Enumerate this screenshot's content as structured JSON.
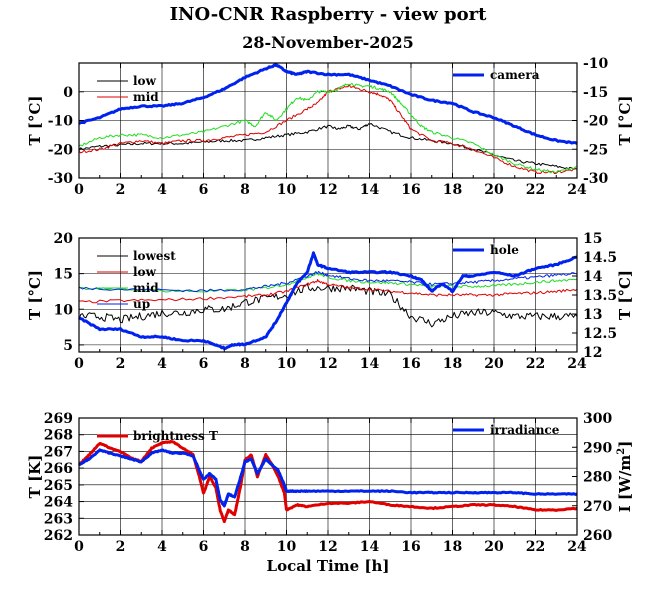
{
  "title": "INO-CNR Raspberry - view port",
  "subtitle": "28-November-2025",
  "colors": {
    "black": "#000000",
    "red": "#e00000",
    "green": "#22dd22",
    "blue": "#0022ee"
  },
  "chart_data": [
    {
      "type": "line",
      "xlabel": "",
      "ylabel": "T [°C]",
      "y2label": "T [°C]",
      "xlim": [
        0,
        24
      ],
      "ylim": [
        -30,
        10
      ],
      "y2lim": [
        -30,
        -10
      ],
      "xticks": [
        0,
        2,
        4,
        6,
        8,
        10,
        12,
        14,
        16,
        18,
        20,
        22,
        24
      ],
      "yticks": [
        -30,
        -20,
        -10,
        0
      ],
      "y2ticks": [
        -30,
        -25,
        -20,
        -15,
        -10
      ],
      "grid": true,
      "legend_left": "top-left",
      "legend_right": "top-right",
      "series": [
        {
          "name": "low",
          "axis": "left",
          "color": "#000000",
          "x": [
            0,
            1,
            2,
            3,
            4,
            5,
            6,
            7,
            8,
            9,
            10,
            11,
            12,
            12.5,
            13,
            13.5,
            14,
            15,
            16,
            17,
            18,
            19,
            20,
            21,
            22,
            23,
            24
          ],
          "y": [
            -20,
            -19,
            -18.5,
            -18,
            -18,
            -18,
            -17.5,
            -17,
            -17,
            -16,
            -15,
            -14,
            -12,
            -13,
            -12,
            -13,
            -11,
            -14,
            -16,
            -17,
            -18,
            -20,
            -22,
            -24,
            -25,
            -26,
            -27
          ]
        },
        {
          "name": "mid",
          "axis": "left",
          "color": "#e00000",
          "x": [
            0,
            1,
            2,
            3,
            4,
            5,
            6,
            7,
            8,
            9,
            10,
            11,
            11.5,
            12,
            12.5,
            13,
            13.5,
            14,
            14.5,
            15,
            15.5,
            16,
            17,
            18,
            19,
            20,
            21,
            22,
            23,
            24
          ],
          "y": [
            -21,
            -20,
            -18,
            -17,
            -18,
            -17,
            -17,
            -16,
            -15,
            -14,
            -10,
            -6,
            -4,
            0,
            1,
            2,
            1,
            0,
            -1,
            -3,
            -8,
            -13,
            -17,
            -18,
            -20,
            -23,
            -26,
            -28,
            -28,
            -27
          ]
        },
        {
          "name": "",
          "axis": "left",
          "color": "#22dd22",
          "x": [
            0,
            1,
            2,
            3,
            4,
            5,
            6,
            7,
            8,
            8.5,
            9,
            9.5,
            10,
            10.5,
            11,
            11.5,
            12,
            12.5,
            13,
            13.5,
            14,
            14.5,
            15,
            15.5,
            16,
            16.5,
            17,
            18,
            19,
            20,
            21,
            22,
            23,
            24
          ],
          "y": [
            -19,
            -16,
            -15,
            -15,
            -16,
            -15,
            -14,
            -12,
            -10,
            -12,
            -7,
            -10,
            -6,
            -2,
            -3,
            0,
            0,
            1,
            3,
            2,
            2,
            1,
            0,
            -4,
            -8,
            -12,
            -14,
            -16,
            -18,
            -22,
            -25,
            -27,
            -28,
            -26
          ]
        },
        {
          "name": "camera",
          "axis": "right",
          "color": "#0022ee",
          "x": [
            0,
            1,
            2,
            3,
            4,
            5,
            6,
            7,
            8,
            9,
            9.5,
            10,
            10.5,
            11,
            12,
            13,
            14,
            15,
            16,
            17,
            18,
            19,
            20,
            21,
            22,
            23,
            24
          ],
          "y": [
            -20.5,
            -19.5,
            -18,
            -17.5,
            -17.5,
            -17,
            -16,
            -14.5,
            -12.5,
            -11,
            -10.3,
            -11.5,
            -12,
            -11.5,
            -12,
            -12,
            -13,
            -14,
            -15.5,
            -16.5,
            -17,
            -18.5,
            -19.5,
            -21,
            -22.5,
            -23.5,
            -24
          ]
        }
      ]
    },
    {
      "type": "line",
      "xlabel": "",
      "ylabel": "T [°C]",
      "y2label": "T [°C]",
      "xlim": [
        0,
        24
      ],
      "ylim": [
        4,
        20
      ],
      "y2lim": [
        12,
        15
      ],
      "xticks": [
        0,
        2,
        4,
        6,
        8,
        10,
        12,
        14,
        16,
        18,
        20,
        22,
        24
      ],
      "yticks": [
        5,
        10,
        15,
        20
      ],
      "y2ticks": [
        12,
        12.5,
        13,
        13.5,
        14,
        14.5,
        15
      ],
      "grid": true,
      "legend_left": "top-left",
      "legend_right": "top-right",
      "series": [
        {
          "name": "lowest",
          "axis": "left",
          "color": "#000000",
          "x": [
            0,
            1,
            2,
            3,
            4,
            5,
            6,
            7,
            8,
            9,
            10,
            11,
            12,
            13,
            14,
            15,
            16,
            17,
            18,
            19,
            20,
            21,
            22,
            23,
            24
          ],
          "y": [
            9,
            9,
            8.5,
            9,
            9.5,
            9.5,
            10,
            10,
            11,
            11.5,
            12,
            13,
            13,
            13,
            12.5,
            12,
            9,
            8,
            9,
            9.5,
            9.5,
            9,
            9,
            9,
            9
          ]
        },
        {
          "name": "low",
          "axis": "left",
          "color": "#e00000",
          "x": [
            0,
            2,
            4,
            6,
            8,
            9,
            10,
            11,
            11.5,
            12,
            13,
            14,
            15,
            16,
            17,
            18,
            19,
            20,
            21,
            22,
            23,
            24
          ],
          "y": [
            11,
            11.2,
            11.3,
            11.5,
            11.8,
            12,
            12.5,
            13.5,
            14,
            13.5,
            13,
            12.8,
            12.5,
            12.3,
            12,
            12,
            12,
            12,
            12.2,
            12.3,
            12.5,
            12.8
          ]
        },
        {
          "name": "mid",
          "axis": "left",
          "color": "#22dd22",
          "x": [
            0,
            2,
            4,
            6,
            8,
            9,
            10,
            11,
            11.5,
            12,
            13,
            14,
            15,
            16,
            17,
            18,
            19,
            20,
            21,
            22,
            23,
            24
          ],
          "y": [
            13,
            12.8,
            12.6,
            12.5,
            12.7,
            13,
            13.5,
            14.5,
            15,
            14.5,
            14,
            13.8,
            13.7,
            13.5,
            13.2,
            13.2,
            13.2,
            13.3,
            13.5,
            13.8,
            14,
            14.2
          ]
        },
        {
          "name": "up",
          "axis": "left",
          "color": "#0022ee",
          "x": [
            0,
            2,
            4,
            6,
            8,
            9,
            10,
            11,
            11.5,
            12,
            13,
            14,
            15,
            16,
            17,
            18,
            19,
            20,
            21,
            22,
            23,
            24
          ],
          "y": [
            13,
            12.8,
            12.7,
            12.6,
            12.8,
            13.2,
            13.7,
            14.7,
            15.2,
            14.8,
            14.3,
            14,
            14,
            13.8,
            13.5,
            13.6,
            13.8,
            14,
            14.3,
            14.5,
            14.8,
            15
          ]
        },
        {
          "name": "hole",
          "axis": "right",
          "color": "#0022ee",
          "x": [
            0,
            1,
            2,
            3,
            4,
            5,
            6,
            6.5,
            7,
            7.5,
            8,
            9,
            9.5,
            10,
            10.5,
            11,
            11.3,
            11.5,
            12,
            13,
            14,
            15,
            16,
            16.5,
            17,
            17.5,
            18,
            18.5,
            19,
            20,
            21,
            22,
            23,
            24
          ],
          "y": [
            12.9,
            12.6,
            12.6,
            12.4,
            12.4,
            12.3,
            12.3,
            12.2,
            12.1,
            12.2,
            12.2,
            12.4,
            12.8,
            13.3,
            13.8,
            14.1,
            14.6,
            14.3,
            14.2,
            14.1,
            14.1,
            14.1,
            14,
            13.9,
            13.6,
            13.8,
            13.6,
            14,
            14,
            14.1,
            14,
            14.2,
            14.3,
            14.5
          ]
        }
      ]
    },
    {
      "type": "line",
      "xlabel": "Local Time [h]",
      "ylabel": "T [K]",
      "y2label": "I [W/m",
      "y2label_sup": "2",
      "y2label_end": "]",
      "xlim": [
        0,
        24
      ],
      "ylim": [
        262,
        269
      ],
      "y2lim": [
        260,
        300
      ],
      "xticks": [
        0,
        2,
        4,
        6,
        8,
        10,
        12,
        14,
        16,
        18,
        20,
        22,
        24
      ],
      "yticks": [
        262,
        263,
        264,
        265,
        266,
        267,
        268,
        269
      ],
      "y2ticks": [
        260,
        270,
        280,
        290,
        300
      ],
      "grid": true,
      "legend_left": "top-left",
      "legend_right": "top-right",
      "series": [
        {
          "name": "brightness T",
          "axis": "left",
          "color": "#e00000",
          "x": [
            0,
            0.5,
            1,
            1.5,
            2,
            2.5,
            3,
            3.5,
            4,
            4.5,
            5,
            5.5,
            5.8,
            6,
            6.3,
            6.6,
            6.8,
            7,
            7.2,
            7.5,
            7.8,
            8,
            8.3,
            8.6,
            9,
            9.3,
            9.6,
            9.9,
            10,
            10.5,
            11,
            12,
            13,
            14,
            15,
            16,
            17,
            18,
            19,
            20,
            21,
            22,
            23,
            24
          ],
          "y": [
            266.2,
            266.8,
            267.5,
            267.2,
            267,
            266.6,
            266.4,
            267.2,
            267.5,
            267.6,
            267.2,
            266.8,
            265.5,
            264.5,
            265.5,
            264.8,
            263.5,
            262.8,
            263.5,
            263.2,
            265,
            266.5,
            266.8,
            265.5,
            266.8,
            266.2,
            265.5,
            264.5,
            263.5,
            263.8,
            263.7,
            263.9,
            263.9,
            264,
            263.8,
            263.7,
            263.6,
            263.7,
            263.8,
            263.8,
            263.7,
            263.5,
            263.5,
            263.6
          ]
        },
        {
          "name": "irradiance",
          "axis": "right",
          "color": "#0022ee",
          "x": [
            0,
            0.5,
            1,
            1.5,
            2,
            2.5,
            3,
            3.5,
            4,
            4.5,
            5,
            5.5,
            5.8,
            6,
            6.3,
            6.6,
            6.8,
            7,
            7.2,
            7.5,
            7.8,
            8,
            8.3,
            8.6,
            9,
            9.3,
            9.6,
            9.9,
            10,
            10.5,
            11,
            12,
            13,
            14,
            15,
            16,
            17,
            18,
            19,
            20,
            21,
            22,
            23,
            24
          ],
          "y": [
            284,
            286,
            289,
            288,
            287,
            286,
            285,
            288,
            289,
            288,
            288,
            287,
            282,
            279,
            281,
            279,
            272,
            270,
            274,
            273,
            280,
            285,
            286,
            281,
            286,
            284,
            282,
            277,
            275,
            275,
            275,
            275,
            275,
            275,
            275,
            274.5,
            274.5,
            274.5,
            274.5,
            274.5,
            274.5,
            274,
            274,
            274
          ]
        }
      ]
    }
  ]
}
